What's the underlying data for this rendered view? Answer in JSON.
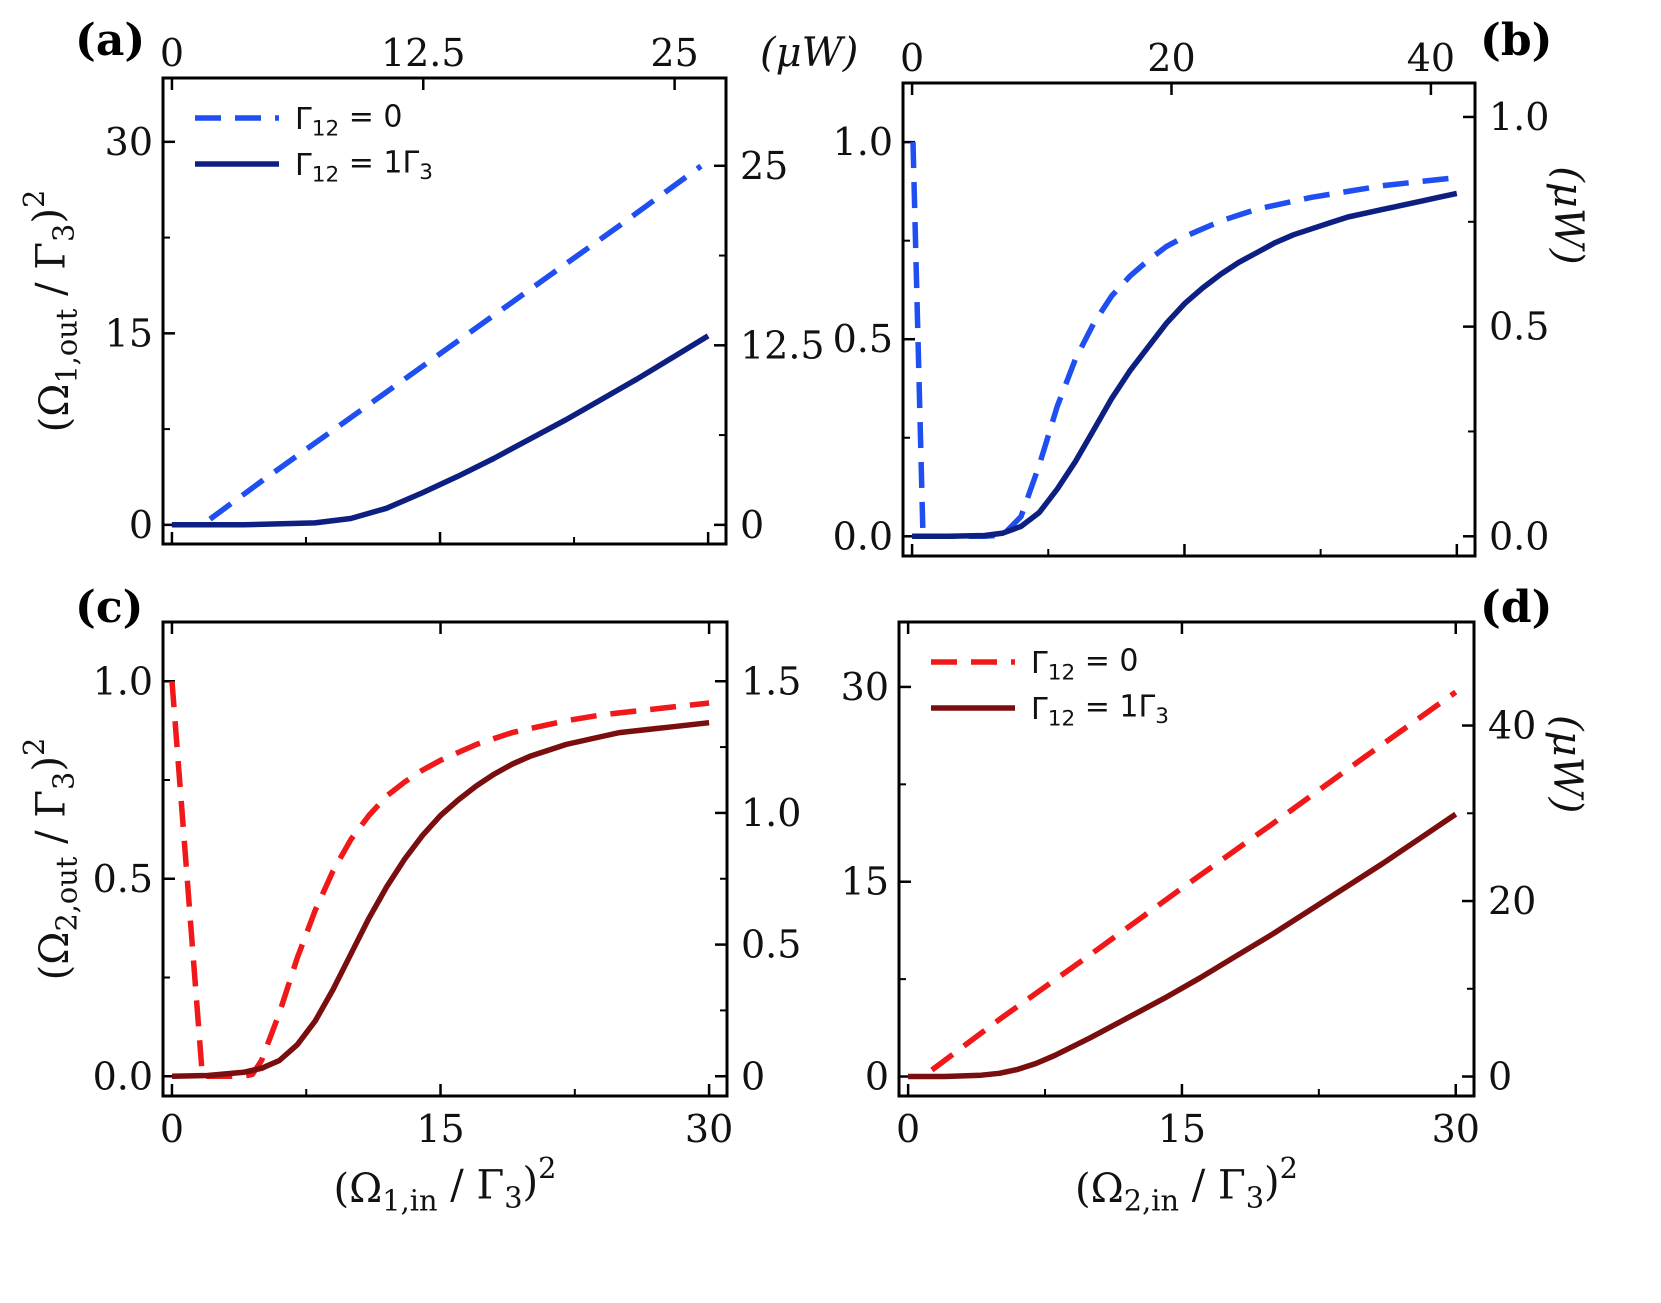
{
  "chart_data": [
    {
      "panel": "(a)",
      "type": "line",
      "xlim": [
        -0.5,
        31
      ],
      "ylim": [
        -1.5,
        35
      ],
      "yticks": [
        0,
        15,
        30
      ],
      "ytick_labels": [
        "0",
        "15",
        "30"
      ],
      "xticks": [
        0,
        15,
        30
      ],
      "xtick_labels": [
        "",
        "",
        ""
      ],
      "top_ticks": [
        0,
        12.5,
        25
      ],
      "top_tick_labels": [
        "0",
        "12.5",
        "25"
      ],
      "top_scale": 0.8889,
      "top_unit": "(μW)",
      "right_ticks": [
        0,
        12.5,
        25
      ],
      "right_tick_labels": [
        "0",
        "12.5",
        "25"
      ],
      "right_scale": 0.8889,
      "right_unit": "",
      "ylabel": "(Ω_{1,out} / Γ_3)^2",
      "xlabel": "",
      "legend": [
        "Γ_{12} = 0",
        "Γ_{12} = 1Γ_3"
      ],
      "legend_position": "top-left",
      "series": [
        {
          "name": "Γ12 = 0",
          "style": "dashed",
          "color": "#1f4ff0",
          "x": [
            0,
            1,
            1.7,
            5,
            10,
            15,
            20,
            25,
            29.6
          ],
          "y": [
            0,
            0,
            0,
            3.4,
            8.4,
            13.4,
            18.4,
            23.4,
            28.1
          ]
        },
        {
          "name": "Γ12 = 1Γ3",
          "style": "solid",
          "color": "#0d1f80",
          "x": [
            0,
            4,
            8,
            10,
            12,
            14,
            16,
            18,
            20,
            22,
            24,
            26,
            28,
            30
          ],
          "y": [
            0,
            0,
            0.15,
            0.5,
            1.3,
            2.5,
            3.8,
            5.2,
            6.7,
            8.2,
            9.8,
            11.4,
            13.1,
            14.8
          ]
        }
      ]
    },
    {
      "panel": "(b)",
      "type": "line",
      "xlim": [
        -0.5,
        31
      ],
      "ylim": [
        -0.05,
        1.15
      ],
      "yticks": [
        0,
        0.5,
        1.0
      ],
      "ytick_labels": [
        "0.0",
        "0.5",
        "1.0"
      ],
      "xticks": [
        0,
        15,
        30
      ],
      "xtick_labels": [
        "",
        "",
        ""
      ],
      "top_ticks": [
        0,
        20,
        40
      ],
      "top_tick_labels": [
        "0",
        "20",
        "40"
      ],
      "top_scale": 1.4,
      "top_unit": "",
      "right_ticks": [
        0,
        0.5,
        1.0
      ],
      "right_tick_labels": [
        "0.0",
        "0.5",
        "1.0"
      ],
      "right_scale": 0.94,
      "right_unit": "(μW)",
      "ylabel": "",
      "xlabel": "",
      "legend": [],
      "legend_position": "none",
      "series": [
        {
          "name": "Γ12 = 0",
          "style": "dashed",
          "color": "#1f4ff0",
          "x": [
            0.05,
            0.6,
            1,
            2,
            3,
            4,
            5,
            6,
            7,
            8,
            9,
            10,
            11,
            12,
            13,
            14,
            15,
            16,
            17,
            18,
            19,
            20,
            22,
            24,
            26,
            28,
            30
          ],
          "y": [
            1.0,
            0.0,
            0,
            0,
            0,
            0,
            0.003,
            0.05,
            0.18,
            0.33,
            0.45,
            0.54,
            0.61,
            0.66,
            0.7,
            0.735,
            0.76,
            0.78,
            0.8,
            0.815,
            0.83,
            0.84,
            0.86,
            0.875,
            0.89,
            0.9,
            0.91
          ]
        },
        {
          "name": "Γ12 = 1Γ3",
          "style": "solid",
          "color": "#0d1f80",
          "x": [
            0,
            2,
            4,
            5,
            6,
            7,
            8,
            9,
            10,
            11,
            12,
            13,
            14,
            15,
            16,
            17,
            18,
            19,
            20,
            21,
            22,
            23,
            24,
            25,
            26,
            27,
            28,
            29,
            30
          ],
          "y": [
            0,
            0,
            0.002,
            0.008,
            0.025,
            0.06,
            0.12,
            0.19,
            0.27,
            0.35,
            0.42,
            0.48,
            0.54,
            0.59,
            0.63,
            0.665,
            0.695,
            0.72,
            0.745,
            0.765,
            0.78,
            0.795,
            0.81,
            0.82,
            0.83,
            0.84,
            0.85,
            0.86,
            0.87
          ]
        }
      ]
    },
    {
      "panel": "(c)",
      "type": "line",
      "xlim": [
        -0.5,
        31
      ],
      "ylim": [
        -0.05,
        1.15
      ],
      "yticks": [
        0,
        0.5,
        1.0
      ],
      "ytick_labels": [
        "0.0",
        "0.5",
        "1.0"
      ],
      "xticks": [
        0,
        15,
        30
      ],
      "xtick_labels": [
        "0",
        "15",
        "30"
      ],
      "top_ticks": [],
      "top_tick_labels": [],
      "top_scale": 1,
      "top_unit": "",
      "right_ticks": [
        0,
        0.5,
        1.0,
        1.5
      ],
      "right_tick_labels": [
        "0",
        "0.5",
        "1.0",
        "1.5"
      ],
      "right_scale": 1.5,
      "right_unit": "",
      "ylabel": "(Ω_{2,out} / Γ_3)^2",
      "xlabel": "(Ω_{1,in} / Γ_3)^2",
      "legend": [],
      "legend_position": "none",
      "series": [
        {
          "name": "Γ12 = 0",
          "style": "dashed",
          "color": "#f01818",
          "x": [
            0,
            1.7,
            2,
            3,
            4,
            4.5,
            5,
            6,
            7,
            8,
            9,
            10,
            11,
            12,
            13,
            14,
            15,
            16,
            17,
            18,
            19,
            20,
            22,
            24,
            26,
            28,
            30
          ],
          "y": [
            1.0,
            0.0,
            0,
            0,
            0,
            0.005,
            0.04,
            0.16,
            0.3,
            0.42,
            0.52,
            0.6,
            0.66,
            0.71,
            0.745,
            0.775,
            0.8,
            0.82,
            0.84,
            0.855,
            0.87,
            0.88,
            0.9,
            0.915,
            0.925,
            0.935,
            0.945
          ]
        },
        {
          "name": "Γ12 = 1Γ3",
          "style": "solid",
          "color": "#7a0d0d",
          "x": [
            0,
            2,
            4,
            5,
            6,
            7,
            8,
            9,
            10,
            11,
            12,
            13,
            14,
            15,
            16,
            17,
            18,
            19,
            20,
            21,
            22,
            23,
            24,
            25,
            26,
            27,
            28,
            29,
            30
          ],
          "y": [
            0,
            0.002,
            0.01,
            0.02,
            0.04,
            0.08,
            0.14,
            0.22,
            0.31,
            0.4,
            0.48,
            0.55,
            0.61,
            0.66,
            0.7,
            0.735,
            0.765,
            0.79,
            0.81,
            0.825,
            0.84,
            0.85,
            0.86,
            0.87,
            0.875,
            0.88,
            0.885,
            0.89,
            0.895
          ]
        }
      ]
    },
    {
      "panel": "(d)",
      "type": "line",
      "xlim": [
        -0.5,
        31
      ],
      "ylim": [
        -1.5,
        35
      ],
      "yticks": [
        0,
        15,
        30
      ],
      "ytick_labels": [
        "0",
        "15",
        "30"
      ],
      "xticks": [
        0,
        15,
        30
      ],
      "xtick_labels": [
        "0",
        "15",
        "30"
      ],
      "top_ticks": [],
      "top_tick_labels": [],
      "top_scale": 1,
      "top_unit": "",
      "right_ticks": [
        0,
        20,
        40
      ],
      "right_tick_labels": [
        "0",
        "20",
        "40"
      ],
      "right_scale": 1.48,
      "right_unit": "(μW)",
      "ylabel": "",
      "xlabel": "(Ω_{2,in} / Γ_3)^2",
      "legend": [
        "Γ_{12} = 0",
        "Γ_{12} = 1Γ_3"
      ],
      "legend_position": "top-left",
      "series": [
        {
          "name": "Γ12 = 0",
          "style": "dashed",
          "color": "#f01818",
          "x": [
            1.3,
            5,
            10,
            15,
            20,
            25,
            30
          ],
          "y": [
            0.5,
            4.4,
            9.4,
            14.5,
            19.5,
            24.6,
            29.6
          ]
        },
        {
          "name": "Γ12 = 1Γ3",
          "style": "solid",
          "color": "#7a0d0d",
          "x": [
            0,
            2,
            4,
            5,
            6,
            7,
            8,
            9,
            10,
            12,
            14,
            16,
            18,
            20,
            22,
            24,
            26,
            28,
            30
          ],
          "y": [
            0,
            0,
            0.1,
            0.25,
            0.55,
            1.0,
            1.6,
            2.3,
            3.0,
            4.5,
            6.0,
            7.6,
            9.3,
            11.0,
            12.8,
            14.6,
            16.4,
            18.3,
            20.2
          ]
        }
      ]
    }
  ]
}
